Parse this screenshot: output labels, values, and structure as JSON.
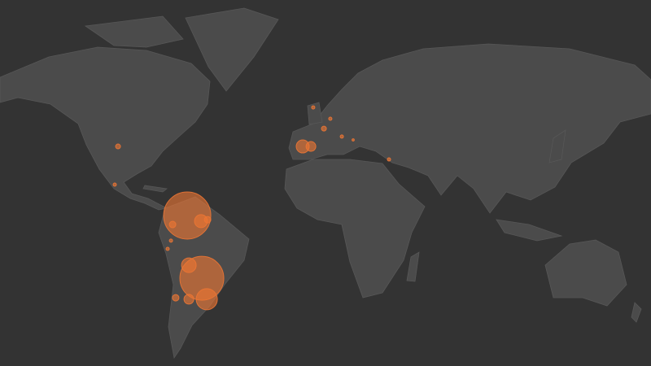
{
  "map": {
    "projection": "equirectangular",
    "background_color": "#333333",
    "land_color": "#4b4b4b",
    "bubble_color": "#ec7634",
    "bubbles": [
      {
        "lon": -64.4,
        "lat": 7.0,
        "value": 841
      },
      {
        "lon": -57.7,
        "lat": 4.3,
        "value": 64
      },
      {
        "lon": -54.5,
        "lat": 5.0,
        "value": 16
      },
      {
        "lon": -71.5,
        "lat": 2.7,
        "value": 16
      },
      {
        "lon": -57.3,
        "lat": -22.9,
        "value": 729
      },
      {
        "lon": -63.6,
        "lat": -16.7,
        "value": 81
      },
      {
        "lon": -54.9,
        "lat": -32.9,
        "value": 169
      },
      {
        "lon": -63.6,
        "lat": -32.9,
        "value": 36
      },
      {
        "lon": -70.0,
        "lat": -32.2,
        "value": 16
      },
      {
        "lon": -73.9,
        "lat": -8.9,
        "value": 4
      },
      {
        "lon": -72.3,
        "lat": -5.0,
        "value": 4
      },
      {
        "lon": -98.0,
        "lat": 39.9,
        "value": 9
      },
      {
        "lon": -99.6,
        "lat": 21.7,
        "value": 4
      },
      {
        "lon": -8.3,
        "lat": 39.9,
        "value": 64
      },
      {
        "lon": -4.3,
        "lat": 39.9,
        "value": 36
      },
      {
        "lon": 2.0,
        "lat": 48.4,
        "value": 9
      },
      {
        "lon": 5.1,
        "lat": 53.1,
        "value": 4
      },
      {
        "lon": -3.2,
        "lat": 58.5,
        "value": 4
      },
      {
        "lon": 10.7,
        "lat": 44.6,
        "value": 4
      },
      {
        "lon": 16.2,
        "lat": 43.0,
        "value": 2
      },
      {
        "lon": 33.6,
        "lat": 33.7,
        "value": 4
      }
    ]
  }
}
